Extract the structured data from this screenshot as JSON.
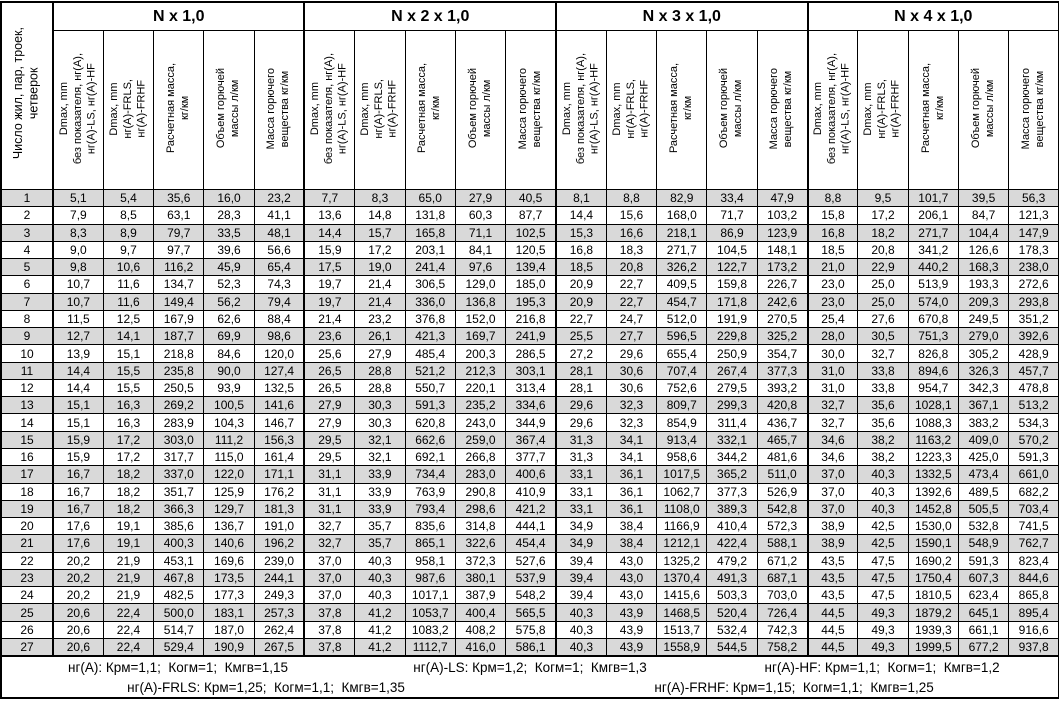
{
  "meta": {
    "colors": {
      "row_shade": "#d9d9d9",
      "border": "#000000",
      "background": "#ffffff"
    }
  },
  "table": {
    "corner_header": "Число жил, пар, троек,\nчетверок",
    "groups": [
      {
        "title": "N x 1,0"
      },
      {
        "title": "N x 2 x 1,0"
      },
      {
        "title": "N x 3 x 1,0"
      },
      {
        "title": "N x 4 x 1,0"
      }
    ],
    "subheaders": [
      "Dmax, mm\nбез показателя, нг(А),\nнг(А)-LS, нг(А)-HF",
      "Dmax, mm\nнг(А)-FRLS,\nнг(А)-FRHF",
      "Расчетная масса,\nкг/км",
      "Объем горючей\nмассы л/км",
      "Масса горючего\nвещества кг/км"
    ],
    "rows": [
      {
        "n": "1",
        "cells": [
          "5,1",
          "5,4",
          "35,6",
          "16,0",
          "23,2",
          "7,7",
          "8,3",
          "65,0",
          "27,9",
          "40,5",
          "8,1",
          "8,8",
          "82,9",
          "33,4",
          "47,9",
          "8,8",
          "9,5",
          "101,7",
          "39,5",
          "56,3"
        ]
      },
      {
        "n": "2",
        "cells": [
          "7,9",
          "8,5",
          "63,1",
          "28,3",
          "41,1",
          "13,6",
          "14,8",
          "131,8",
          "60,3",
          "87,7",
          "14,4",
          "15,6",
          "168,0",
          "71,7",
          "103,2",
          "15,8",
          "17,2",
          "206,1",
          "84,7",
          "121,3"
        ]
      },
      {
        "n": "3",
        "cells": [
          "8,3",
          "8,9",
          "79,7",
          "33,5",
          "48,1",
          "14,4",
          "15,7",
          "165,8",
          "71,1",
          "102,5",
          "15,3",
          "16,6",
          "218,1",
          "86,9",
          "123,9",
          "16,8",
          "18,2",
          "271,7",
          "104,4",
          "147,9"
        ]
      },
      {
        "n": "4",
        "cells": [
          "9,0",
          "9,7",
          "97,7",
          "39,6",
          "56,6",
          "15,9",
          "17,2",
          "203,1",
          "84,1",
          "120,5",
          "16,8",
          "18,3",
          "271,7",
          "104,5",
          "148,1",
          "18,5",
          "20,8",
          "341,2",
          "126,6",
          "178,3"
        ]
      },
      {
        "n": "5",
        "cells": [
          "9,8",
          "10,6",
          "116,2",
          "45,9",
          "65,4",
          "17,5",
          "19,0",
          "241,4",
          "97,6",
          "139,4",
          "18,5",
          "20,8",
          "326,2",
          "122,7",
          "173,2",
          "21,0",
          "22,9",
          "440,2",
          "168,3",
          "238,0"
        ]
      },
      {
        "n": "6",
        "cells": [
          "10,7",
          "11,6",
          "134,7",
          "52,3",
          "74,3",
          "19,7",
          "21,4",
          "306,5",
          "129,0",
          "185,0",
          "20,9",
          "22,7",
          "409,5",
          "159,8",
          "226,7",
          "23,0",
          "25,0",
          "513,9",
          "193,3",
          "272,6"
        ]
      },
      {
        "n": "7",
        "cells": [
          "10,7",
          "11,6",
          "149,4",
          "56,2",
          "79,4",
          "19,7",
          "21,4",
          "336,0",
          "136,8",
          "195,3",
          "20,9",
          "22,7",
          "454,7",
          "171,8",
          "242,6",
          "23,0",
          "25,0",
          "574,0",
          "209,3",
          "293,8"
        ]
      },
      {
        "n": "8",
        "cells": [
          "11,5",
          "12,5",
          "167,9",
          "62,6",
          "88,4",
          "21,4",
          "23,2",
          "376,8",
          "152,0",
          "216,8",
          "22,7",
          "24,7",
          "512,0",
          "191,9",
          "270,5",
          "25,4",
          "27,6",
          "670,8",
          "249,5",
          "351,2"
        ]
      },
      {
        "n": "9",
        "cells": [
          "12,7",
          "14,1",
          "187,7",
          "69,9",
          "98,6",
          "23,6",
          "26,1",
          "421,3",
          "169,7",
          "241,9",
          "25,5",
          "27,7",
          "596,5",
          "229,8",
          "325,2",
          "28,0",
          "30,5",
          "751,3",
          "279,0",
          "392,6"
        ]
      },
      {
        "n": "10",
        "cells": [
          "13,9",
          "15,1",
          "218,8",
          "84,6",
          "120,0",
          "25,6",
          "27,9",
          "485,4",
          "200,3",
          "286,5",
          "27,2",
          "29,6",
          "655,4",
          "250,9",
          "354,7",
          "30,0",
          "32,7",
          "826,8",
          "305,2",
          "428,9"
        ]
      },
      {
        "n": "11",
        "cells": [
          "14,4",
          "15,5",
          "235,8",
          "90,0",
          "127,4",
          "26,5",
          "28,8",
          "521,2",
          "212,3",
          "303,1",
          "28,1",
          "30,6",
          "707,4",
          "267,4",
          "377,3",
          "31,0",
          "33,8",
          "894,6",
          "326,3",
          "457,7"
        ]
      },
      {
        "n": "12",
        "cells": [
          "14,4",
          "15,5",
          "250,5",
          "93,9",
          "132,5",
          "26,5",
          "28,8",
          "550,7",
          "220,1",
          "313,4",
          "28,1",
          "30,6",
          "752,6",
          "279,5",
          "393,2",
          "31,0",
          "33,8",
          "954,7",
          "342,3",
          "478,8"
        ]
      },
      {
        "n": "13",
        "cells": [
          "15,1",
          "16,3",
          "269,2",
          "100,5",
          "141,6",
          "27,9",
          "30,3",
          "591,3",
          "235,2",
          "334,6",
          "29,6",
          "32,3",
          "809,7",
          "299,3",
          "420,8",
          "32,7",
          "35,6",
          "1028,1",
          "367,1",
          "513,2"
        ]
      },
      {
        "n": "14",
        "cells": [
          "15,1",
          "16,3",
          "283,9",
          "104,3",
          "146,7",
          "27,9",
          "30,3",
          "620,8",
          "243,0",
          "344,9",
          "29,6",
          "32,3",
          "854,9",
          "311,4",
          "436,7",
          "32,7",
          "35,6",
          "1088,3",
          "383,2",
          "534,3"
        ]
      },
      {
        "n": "15",
        "cells": [
          "15,9",
          "17,2",
          "303,0",
          "111,2",
          "156,3",
          "29,5",
          "32,1",
          "662,6",
          "259,0",
          "367,4",
          "31,3",
          "34,1",
          "913,4",
          "332,1",
          "465,7",
          "34,6",
          "38,2",
          "1163,2",
          "409,0",
          "570,2"
        ]
      },
      {
        "n": "16",
        "cells": [
          "15,9",
          "17,2",
          "317,7",
          "115,0",
          "161,4",
          "29,5",
          "32,1",
          "692,1",
          "266,8",
          "377,7",
          "31,3",
          "34,1",
          "958,6",
          "344,2",
          "481,6",
          "34,6",
          "38,2",
          "1223,3",
          "425,0",
          "591,3"
        ]
      },
      {
        "n": "17",
        "cells": [
          "16,7",
          "18,2",
          "337,0",
          "122,0",
          "171,1",
          "31,1",
          "33,9",
          "734,4",
          "283,0",
          "400,6",
          "33,1",
          "36,1",
          "1017,5",
          "365,2",
          "511,0",
          "37,0",
          "40,3",
          "1332,5",
          "473,4",
          "661,0"
        ]
      },
      {
        "n": "18",
        "cells": [
          "16,7",
          "18,2",
          "351,7",
          "125,9",
          "176,2",
          "31,1",
          "33,9",
          "763,9",
          "290,8",
          "410,9",
          "33,1",
          "36,1",
          "1062,7",
          "377,3",
          "526,9",
          "37,0",
          "40,3",
          "1392,6",
          "489,5",
          "682,2"
        ]
      },
      {
        "n": "19",
        "cells": [
          "16,7",
          "18,2",
          "366,3",
          "129,7",
          "181,3",
          "31,1",
          "33,9",
          "793,4",
          "298,6",
          "421,2",
          "33,1",
          "36,1",
          "1108,0",
          "389,3",
          "542,8",
          "37,0",
          "40,3",
          "1452,8",
          "505,5",
          "703,4"
        ]
      },
      {
        "n": "20",
        "cells": [
          "17,6",
          "19,1",
          "385,6",
          "136,7",
          "191,0",
          "32,7",
          "35,7",
          "835,6",
          "314,8",
          "444,1",
          "34,9",
          "38,4",
          "1166,9",
          "410,4",
          "572,3",
          "38,9",
          "42,5",
          "1530,0",
          "532,8",
          "741,5"
        ]
      },
      {
        "n": "21",
        "cells": [
          "17,6",
          "19,1",
          "400,3",
          "140,6",
          "196,2",
          "32,7",
          "35,7",
          "865,1",
          "322,6",
          "454,4",
          "34,9",
          "38,4",
          "1212,1",
          "422,4",
          "588,1",
          "38,9",
          "42,5",
          "1590,1",
          "548,9",
          "762,7"
        ]
      },
      {
        "n": "22",
        "cells": [
          "20,2",
          "21,9",
          "453,1",
          "169,6",
          "239,0",
          "37,0",
          "40,3",
          "958,1",
          "372,3",
          "527,6",
          "39,4",
          "43,0",
          "1325,2",
          "479,2",
          "671,2",
          "43,5",
          "47,5",
          "1690,2",
          "591,3",
          "823,4"
        ]
      },
      {
        "n": "23",
        "cells": [
          "20,2",
          "21,9",
          "467,8",
          "173,5",
          "244,1",
          "37,0",
          "40,3",
          "987,6",
          "380,1",
          "537,9",
          "39,4",
          "43,0",
          "1370,4",
          "491,3",
          "687,1",
          "43,5",
          "47,5",
          "1750,4",
          "607,3",
          "844,6"
        ]
      },
      {
        "n": "24",
        "cells": [
          "20,2",
          "21,9",
          "482,5",
          "177,3",
          "249,3",
          "37,0",
          "40,3",
          "1017,1",
          "387,9",
          "548,2",
          "39,4",
          "43,0",
          "1415,6",
          "503,3",
          "703,0",
          "43,5",
          "47,5",
          "1810,5",
          "623,4",
          "865,8"
        ]
      },
      {
        "n": "25",
        "cells": [
          "20,6",
          "22,4",
          "500,0",
          "183,1",
          "257,3",
          "37,8",
          "41,2",
          "1053,7",
          "400,4",
          "565,5",
          "40,3",
          "43,9",
          "1468,5",
          "520,4",
          "726,4",
          "44,5",
          "49,3",
          "1879,2",
          "645,1",
          "895,4"
        ]
      },
      {
        "n": "26",
        "cells": [
          "20,6",
          "22,4",
          "514,7",
          "187,0",
          "262,4",
          "37,8",
          "41,2",
          "1083,2",
          "408,2",
          "575,8",
          "40,3",
          "43,9",
          "1513,7",
          "532,4",
          "742,3",
          "44,5",
          "49,3",
          "1939,3",
          "661,1",
          "916,6"
        ]
      },
      {
        "n": "27",
        "cells": [
          "20,6",
          "22,4",
          "529,4",
          "190,9",
          "267,5",
          "37,8",
          "41,2",
          "1112,7",
          "416,0",
          "586,1",
          "40,3",
          "43,9",
          "1558,9",
          "544,5",
          "758,2",
          "44,5",
          "49,3",
          "1999,5",
          "677,2",
          "937,8"
        ]
      }
    ],
    "footnotes": {
      "row1": [
        "нг(А): Крм=1,1;  Когм=1;  Кмгв=1,15",
        "нг(А)-LS: Крм=1,2;  Когм=1;  Кмгв=1,3",
        "нг(А)-HF: Крм=1,1;  Когм=1;  Кмгв=1,2"
      ],
      "row2": [
        "нг(А)-FRLS: Крм=1,25;  Когм=1,1;  Кмгв=1,35",
        "нг(А)-FRHF: Крм=1,15;  Когм=1,1;  Кмгв=1,25"
      ]
    }
  }
}
